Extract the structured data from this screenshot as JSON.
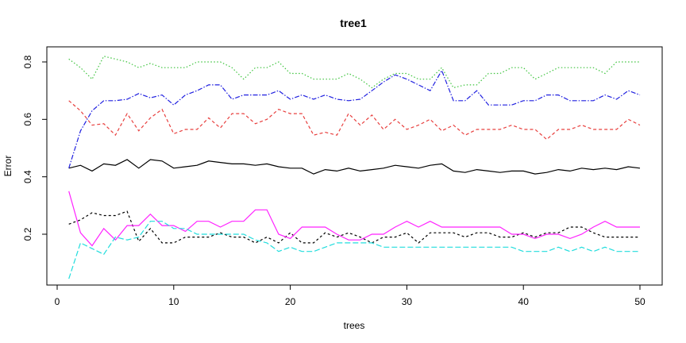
{
  "chart_data": {
    "type": "line",
    "title": "tree1",
    "xlabel": "trees",
    "ylabel": "Error",
    "xlim": [
      0,
      50
    ],
    "ylim": [
      0.03,
      0.84
    ],
    "xticks": [
      0,
      10,
      20,
      30,
      40,
      50
    ],
    "yticks": [
      0.2,
      0.4,
      0.6,
      0.8
    ],
    "x": [
      1,
      2,
      3,
      4,
      5,
      6,
      7,
      8,
      9,
      10,
      11,
      12,
      13,
      14,
      15,
      16,
      17,
      18,
      19,
      20,
      21,
      22,
      23,
      24,
      25,
      26,
      27,
      28,
      29,
      30,
      31,
      32,
      33,
      34,
      35,
      36,
      37,
      38,
      39,
      40,
      41,
      42,
      43,
      44,
      45,
      46,
      47,
      48,
      49,
      50
    ],
    "series": [
      {
        "color": "#000000",
        "dash": "solid",
        "values": [
          0.43,
          0.44,
          0.42,
          0.445,
          0.44,
          0.46,
          0.43,
          0.46,
          0.455,
          0.43,
          0.435,
          0.44,
          0.455,
          0.45,
          0.445,
          0.445,
          0.44,
          0.445,
          0.435,
          0.43,
          0.43,
          0.41,
          0.425,
          0.42,
          0.43,
          0.42,
          0.425,
          0.43,
          0.44,
          0.435,
          0.43,
          0.44,
          0.445,
          0.42,
          0.415,
          0.425,
          0.42,
          0.415,
          0.42,
          0.42,
          0.41,
          0.415,
          0.425,
          0.42,
          0.43,
          0.425,
          0.43,
          0.425,
          0.435,
          0.43
        ]
      },
      {
        "color": "#e8403f",
        "dash": "4,3",
        "values": [
          0.665,
          0.63,
          0.58,
          0.585,
          0.545,
          0.62,
          0.56,
          0.605,
          0.635,
          0.55,
          0.565,
          0.565,
          0.605,
          0.57,
          0.62,
          0.62,
          0.585,
          0.6,
          0.635,
          0.62,
          0.62,
          0.545,
          0.555,
          0.545,
          0.62,
          0.58,
          0.615,
          0.565,
          0.6,
          0.565,
          0.58,
          0.6,
          0.56,
          0.58,
          0.545,
          0.565,
          0.565,
          0.565,
          0.58,
          0.565,
          0.565,
          0.53,
          0.565,
          0.565,
          0.58,
          0.565,
          0.565,
          0.565,
          0.6,
          0.58
        ]
      },
      {
        "color": "#3ec43e",
        "dash": "1.5,2.5",
        "values": [
          0.81,
          0.78,
          0.74,
          0.82,
          0.81,
          0.8,
          0.78,
          0.795,
          0.78,
          0.78,
          0.78,
          0.8,
          0.8,
          0.8,
          0.78,
          0.74,
          0.78,
          0.78,
          0.8,
          0.76,
          0.76,
          0.74,
          0.74,
          0.74,
          0.76,
          0.74,
          0.71,
          0.74,
          0.76,
          0.76,
          0.74,
          0.74,
          0.78,
          0.71,
          0.72,
          0.72,
          0.76,
          0.76,
          0.78,
          0.78,
          0.74,
          0.76,
          0.78,
          0.78,
          0.78,
          0.78,
          0.76,
          0.8,
          0.8,
          0.8
        ]
      },
      {
        "color": "#2020e0",
        "dash": "6,2,1.5,2",
        "values": [
          0.43,
          0.56,
          0.63,
          0.665,
          0.665,
          0.67,
          0.69,
          0.675,
          0.685,
          0.65,
          0.685,
          0.7,
          0.72,
          0.72,
          0.67,
          0.685,
          0.685,
          0.685,
          0.7,
          0.67,
          0.685,
          0.67,
          0.685,
          0.67,
          0.665,
          0.67,
          0.7,
          0.73,
          0.755,
          0.74,
          0.72,
          0.7,
          0.77,
          0.665,
          0.665,
          0.7,
          0.65,
          0.65,
          0.65,
          0.665,
          0.665,
          0.685,
          0.685,
          0.665,
          0.665,
          0.665,
          0.685,
          0.67,
          0.7,
          0.685
        ]
      },
      {
        "color": "#000000",
        "dash": "3,3",
        "values": [
          0.235,
          0.25,
          0.275,
          0.265,
          0.265,
          0.28,
          0.175,
          0.22,
          0.17,
          0.17,
          0.19,
          0.19,
          0.19,
          0.205,
          0.19,
          0.19,
          0.17,
          0.19,
          0.17,
          0.205,
          0.17,
          0.17,
          0.205,
          0.19,
          0.205,
          0.19,
          0.17,
          0.19,
          0.19,
          0.205,
          0.17,
          0.205,
          0.205,
          0.205,
          0.19,
          0.205,
          0.205,
          0.19,
          0.19,
          0.205,
          0.19,
          0.205,
          0.205,
          0.225,
          0.225,
          0.205,
          0.19,
          0.19,
          0.19,
          0.19
        ]
      },
      {
        "color": "#ff22ff",
        "dash": "solid",
        "values": [
          0.35,
          0.205,
          0.16,
          0.22,
          0.18,
          0.23,
          0.23,
          0.27,
          0.23,
          0.23,
          0.21,
          0.245,
          0.245,
          0.225,
          0.245,
          0.245,
          0.285,
          0.285,
          0.2,
          0.185,
          0.225,
          0.225,
          0.225,
          0.2,
          0.18,
          0.18,
          0.2,
          0.2,
          0.225,
          0.245,
          0.225,
          0.245,
          0.225,
          0.225,
          0.225,
          0.225,
          0.225,
          0.225,
          0.2,
          0.2,
          0.185,
          0.2,
          0.2,
          0.185,
          0.2,
          0.225,
          0.245,
          0.225,
          0.225,
          0.225
        ]
      },
      {
        "color": "#22dddd",
        "dash": "7,3",
        "values": [
          0.045,
          0.17,
          0.15,
          0.13,
          0.19,
          0.18,
          0.19,
          0.245,
          0.245,
          0.22,
          0.22,
          0.2,
          0.2,
          0.2,
          0.2,
          0.2,
          0.18,
          0.17,
          0.14,
          0.155,
          0.14,
          0.14,
          0.155,
          0.17,
          0.17,
          0.17,
          0.17,
          0.155,
          0.155,
          0.155,
          0.155,
          0.155,
          0.155,
          0.155,
          0.155,
          0.155,
          0.155,
          0.155,
          0.155,
          0.14,
          0.14,
          0.14,
          0.155,
          0.14,
          0.155,
          0.14,
          0.155,
          0.14,
          0.14,
          0.14
        ]
      }
    ]
  }
}
